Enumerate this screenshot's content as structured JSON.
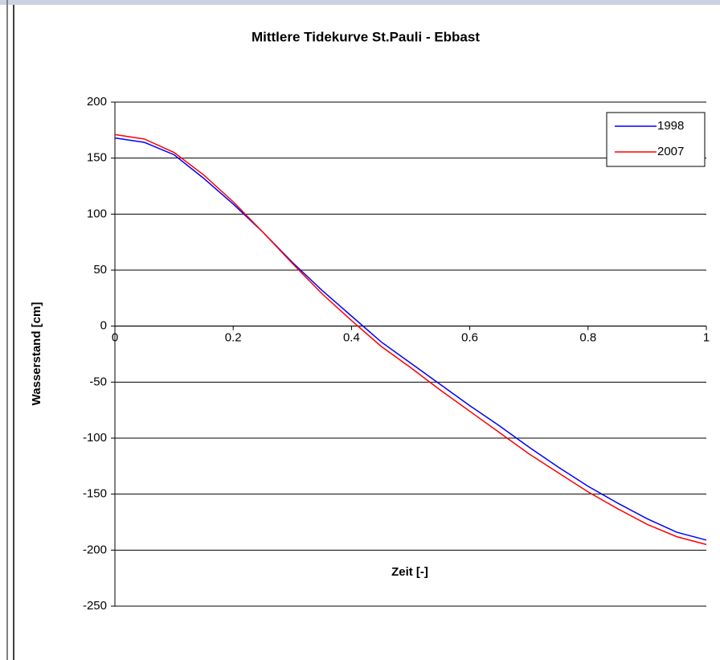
{
  "chart_data": {
    "type": "line",
    "title": "Mittlere Tidekurve St.Pauli - Ebbast",
    "x_label": "Zeit [-]",
    "y_label": "Wasserstand [cm]",
    "x": [
      0,
      0.05,
      0.1,
      0.15,
      0.2,
      0.25,
      0.3,
      0.35,
      0.4,
      0.45,
      0.5,
      0.55,
      0.6,
      0.65,
      0.7,
      0.75,
      0.8,
      0.85,
      0.9,
      0.95,
      1
    ],
    "series": [
      {
        "name": "1998",
        "color": "#0000ff",
        "values": [
          168,
          164,
          153,
          132,
          109,
          84,
          57,
          32,
          9,
          -14,
          -33,
          -52,
          -71,
          -89,
          -108,
          -126,
          -143,
          -158,
          -172,
          -184,
          -191
        ]
      },
      {
        "name": "2007",
        "color": "#ff0000",
        "values": [
          171,
          167,
          155,
          135,
          111,
          84,
          56,
          29,
          5,
          -18,
          -37,
          -57,
          -76,
          -95,
          -114,
          -131,
          -148,
          -163,
          -177,
          -188,
          -195
        ]
      }
    ],
    "xlim": [
      0,
      1
    ],
    "ylim": [
      -250,
      200
    ],
    "xticks": [
      0,
      0.2,
      0.4,
      0.6,
      0.8,
      1
    ],
    "yticks": [
      -250,
      -200,
      -150,
      -100,
      -50,
      0,
      50,
      100,
      150,
      200
    ],
    "grid": true,
    "legend": "top-right"
  }
}
